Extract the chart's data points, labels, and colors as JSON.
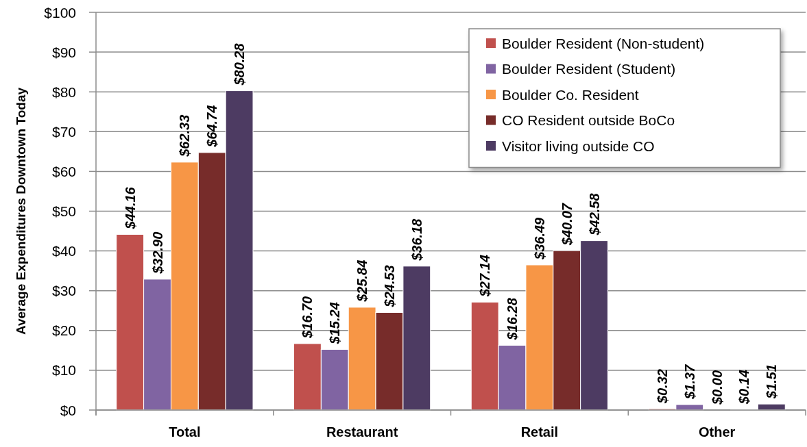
{
  "chart_data": {
    "type": "bar",
    "ylabel": "Average Expenditures Downtown Today",
    "categories": [
      "Total",
      "Restaurant",
      "Retail",
      "Other"
    ],
    "series": [
      {
        "name": "Boulder Resident (Non-student)",
        "color": "#c0504d",
        "values": [
          44.16,
          16.7,
          27.14,
          0.32
        ],
        "value_labels": [
          "$44.16",
          "$16.70",
          "$27.14",
          "$0.32"
        ]
      },
      {
        "name": "Boulder Resident (Student)",
        "color": "#8064a2",
        "values": [
          32.9,
          15.24,
          16.28,
          1.37
        ],
        "value_labels": [
          "$32.90",
          "$15.24",
          "$16.28",
          "$1.37"
        ]
      },
      {
        "name": "Boulder Co. Resident",
        "color": "#f79646",
        "values": [
          62.33,
          25.84,
          36.49,
          0.0
        ],
        "value_labels": [
          "$62.33",
          "$25.84",
          "$36.49",
          "$0.00"
        ]
      },
      {
        "name": "CO Resident outside BoCo",
        "color": "#772c2a",
        "values": [
          64.74,
          24.53,
          40.07,
          0.14
        ],
        "value_labels": [
          "$64.74",
          "$24.53",
          "$40.07",
          "$0.14"
        ]
      },
      {
        "name": "Visitor living outside CO",
        "color": "#4d3b62",
        "values": [
          80.28,
          36.18,
          42.58,
          1.51
        ],
        "value_labels": [
          "$80.28",
          "$36.18",
          "$42.58",
          "$1.51"
        ]
      }
    ],
    "ylim": [
      0,
      100
    ],
    "yticks": [
      {
        "value": 0,
        "label": "$0"
      },
      {
        "value": 10,
        "label": "$10"
      },
      {
        "value": 20,
        "label": "$20"
      },
      {
        "value": 30,
        "label": "$30"
      },
      {
        "value": 40,
        "label": "$40"
      },
      {
        "value": 50,
        "label": "$50"
      },
      {
        "value": 60,
        "label": "$60"
      },
      {
        "value": 70,
        "label": "$70"
      },
      {
        "value": 80,
        "label": "$80"
      },
      {
        "value": 90,
        "label": "$90"
      },
      {
        "value": 100,
        "label": "$100"
      }
    ],
    "grid": "y",
    "legend": "top right"
  }
}
